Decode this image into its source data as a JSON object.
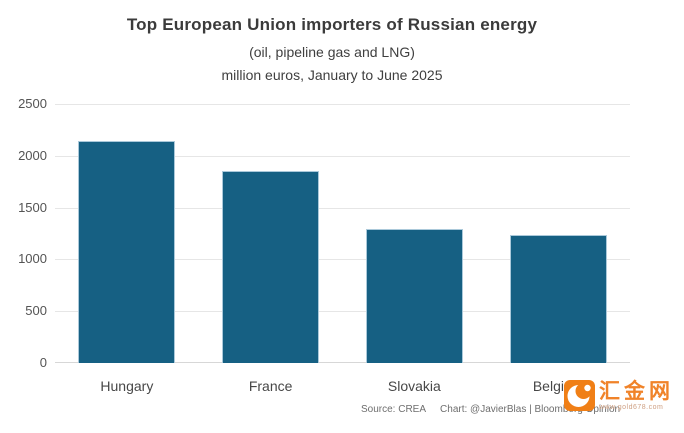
{
  "header": {
    "title": "Top European Union importers of Russian energy",
    "subtitle": "(oil, pipeline gas and LNG)",
    "note": "million euros, January to June 2025"
  },
  "chart_data": {
    "type": "bar",
    "categories": [
      "Hungary",
      "France",
      "Slovakia",
      "Belgium"
    ],
    "values": [
      2140,
      1855,
      1295,
      1240
    ],
    "title": "Top European Union importers of Russian energy",
    "subtitle": "(oil, pipeline gas and LNG)",
    "units_note": "million euros, January to June 2025",
    "xlabel": "",
    "ylabel": "",
    "ylim": [
      0,
      2500
    ],
    "yticks": [
      0,
      500,
      1000,
      1500,
      2000,
      2500
    ],
    "grid": "horizontal",
    "legend": "none",
    "bar_color": "#166083",
    "bar_edge_color": "#abc9da"
  },
  "footer": {
    "source": "Source: CREA",
    "credit": "Chart: @JavierBlas | Bloomberg Opinion"
  },
  "watermark": {
    "brand": "汇金网",
    "url": "www.gold678.com",
    "logo_color": "#f07f16",
    "brand_color": "#f08329"
  }
}
